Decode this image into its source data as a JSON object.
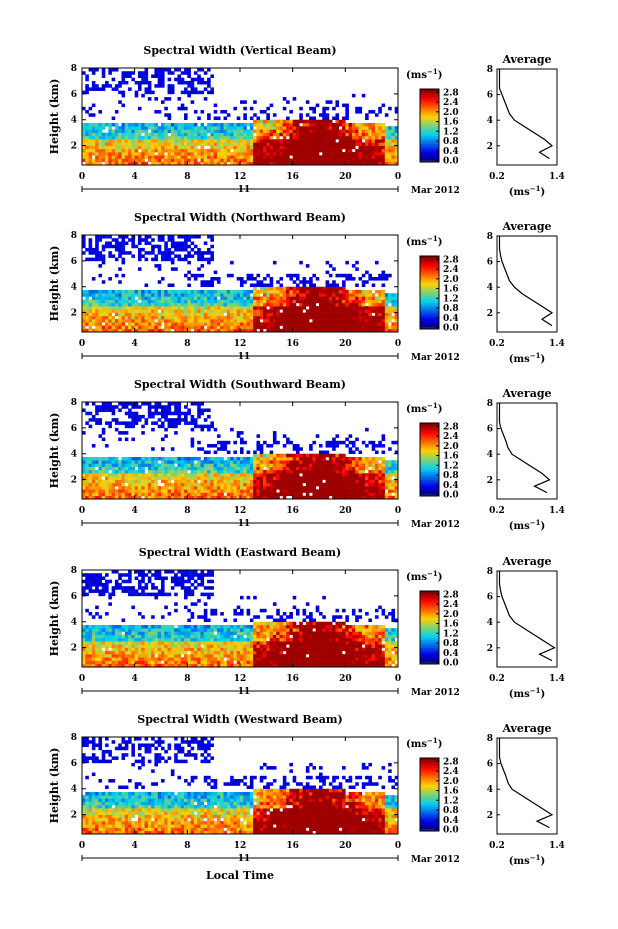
{
  "figure": {
    "xlabel": "Local Time",
    "date_left": "11",
    "date_right": "Mar 2012",
    "ylabel": "Height (km)",
    "cbar_unit": "(ms",
    "cbar_unit_exp": "−1",
    "avg_title": "Average",
    "avg_unit": "(ms",
    "avg_unit_exp": "−1"
  },
  "chart_data": [
    {
      "type": "heatmap",
      "title": "Spectral Width (Vertical Beam)",
      "xlabel": "",
      "ylabel": "Height (km)",
      "x_ticks": [
        "0",
        "4",
        "8",
        "12",
        "16",
        "20",
        "0"
      ],
      "y_ticks": [
        "2",
        "4",
        "6",
        "8"
      ],
      "xlim": [
        0,
        24
      ],
      "ylim": [
        0.5,
        8
      ],
      "colorbar": {
        "ticks": [
          "0.0",
          "0.4",
          "0.8",
          "1.2",
          "1.6",
          "2.0",
          "2.4",
          "2.8"
        ],
        "range": [
          0,
          3.0
        ]
      },
      "convective_peak": {
        "start_hour": 13,
        "end_hour": 23,
        "center_hour": 18,
        "max_width": 2.8
      },
      "average_profile": {
        "title": "Average",
        "xlim": [
          0.2,
          1.4
        ],
        "ylim": [
          0.5,
          8
        ],
        "x_ticks": [
          "0.2",
          "1.4"
        ],
        "y_ticks": [
          "2",
          "4",
          "6",
          "8"
        ],
        "height_km": [
          1.0,
          1.5,
          2.0,
          2.5,
          3.0,
          3.5,
          4.0,
          4.5,
          5.0,
          5.5,
          6.0,
          6.5,
          7.0,
          7.5,
          8.0
        ],
        "width_ms": [
          1.25,
          1.05,
          1.3,
          1.15,
          0.95,
          0.75,
          0.55,
          0.45,
          0.4,
          0.35,
          0.3,
          0.25,
          0.25,
          0.25,
          0.25
        ]
      }
    },
    {
      "type": "heatmap",
      "title": "Spectral Width (Northward Beam)",
      "xlabel": "",
      "ylabel": "Height (km)",
      "x_ticks": [
        "0",
        "4",
        "8",
        "12",
        "16",
        "20",
        "0"
      ],
      "y_ticks": [
        "2",
        "4",
        "6",
        "8"
      ],
      "xlim": [
        0,
        24
      ],
      "ylim": [
        0.5,
        8
      ],
      "colorbar": {
        "ticks": [
          "0.0",
          "0.4",
          "0.8",
          "1.2",
          "1.6",
          "2.0",
          "2.4",
          "2.8"
        ],
        "range": [
          0,
          3.0
        ]
      },
      "convective_peak": {
        "start_hour": 13,
        "end_hour": 23,
        "center_hour": 18,
        "max_width": 2.8
      },
      "average_profile": {
        "title": "Average",
        "xlim": [
          0.2,
          1.4
        ],
        "ylim": [
          0.5,
          8
        ],
        "x_ticks": [
          "0.2",
          "1.4"
        ],
        "y_ticks": [
          "2",
          "4",
          "6",
          "8"
        ],
        "height_km": [
          1.0,
          1.5,
          2.0,
          2.5,
          3.0,
          3.5,
          4.0,
          4.5,
          5.0,
          5.5,
          6.0,
          6.5,
          7.0,
          7.5,
          8.0
        ],
        "width_ms": [
          1.3,
          1.1,
          1.3,
          1.1,
          0.9,
          0.7,
          0.55,
          0.45,
          0.4,
          0.35,
          0.3,
          0.27,
          0.25,
          0.25,
          0.25
        ]
      }
    },
    {
      "type": "heatmap",
      "title": "Spectral Width (Southward Beam)",
      "xlabel": "",
      "ylabel": "Height (km)",
      "x_ticks": [
        "0",
        "4",
        "8",
        "12",
        "16",
        "20",
        "0"
      ],
      "y_ticks": [
        "2",
        "4",
        "6",
        "8"
      ],
      "xlim": [
        0,
        24
      ],
      "ylim": [
        0.5,
        8
      ],
      "colorbar": {
        "ticks": [
          "0.0",
          "0.4",
          "0.8",
          "1.2",
          "1.6",
          "2.0",
          "2.4",
          "2.8"
        ],
        "range": [
          0,
          3.0
        ]
      },
      "convective_peak": {
        "start_hour": 13,
        "end_hour": 23,
        "center_hour": 18,
        "max_width": 2.8
      },
      "average_profile": {
        "title": "Average",
        "xlim": [
          0.2,
          1.4
        ],
        "ylim": [
          0.5,
          8
        ],
        "x_ticks": [
          "0.2",
          "1.4"
        ],
        "y_ticks": [
          "2",
          "4",
          "6",
          "8"
        ],
        "height_km": [
          1.0,
          1.5,
          2.0,
          2.5,
          3.0,
          3.5,
          4.0,
          4.5,
          5.0,
          5.5,
          6.0,
          6.5,
          7.0,
          7.5,
          8.0
        ],
        "width_ms": [
          1.2,
          0.95,
          1.25,
          1.1,
          0.9,
          0.7,
          0.5,
          0.42,
          0.38,
          0.33,
          0.28,
          0.25,
          0.25,
          0.25,
          0.25
        ]
      }
    },
    {
      "type": "heatmap",
      "title": "Spectral Width (Eastward Beam)",
      "xlabel": "",
      "ylabel": "Height (km)",
      "x_ticks": [
        "0",
        "4",
        "8",
        "12",
        "16",
        "20",
        "0"
      ],
      "y_ticks": [
        "2",
        "4",
        "6",
        "8"
      ],
      "xlim": [
        0,
        24
      ],
      "ylim": [
        0.5,
        8
      ],
      "colorbar": {
        "ticks": [
          "0.0",
          "0.4",
          "0.8",
          "1.2",
          "1.6",
          "2.0",
          "2.4",
          "2.8"
        ],
        "range": [
          0,
          3.0
        ]
      },
      "convective_peak": {
        "start_hour": 13,
        "end_hour": 23,
        "center_hour": 18,
        "max_width": 2.8
      },
      "average_profile": {
        "title": "Average",
        "xlim": [
          0.2,
          1.4
        ],
        "ylim": [
          0.5,
          8
        ],
        "x_ticks": [
          "0.2",
          "1.4"
        ],
        "y_ticks": [
          "2",
          "4",
          "6",
          "8"
        ],
        "height_km": [
          1.0,
          1.5,
          2.0,
          2.5,
          3.0,
          3.5,
          4.0,
          4.5,
          5.0,
          5.5,
          6.0,
          6.5,
          7.0,
          7.5,
          8.0
        ],
        "width_ms": [
          1.3,
          1.05,
          1.35,
          1.15,
          0.95,
          0.75,
          0.55,
          0.45,
          0.4,
          0.35,
          0.3,
          0.27,
          0.25,
          0.25,
          0.25
        ]
      }
    },
    {
      "type": "heatmap",
      "title": "Spectral Width (Westward Beam)",
      "xlabel": "Local Time",
      "ylabel": "Height (km)",
      "x_ticks": [
        "0",
        "4",
        "8",
        "12",
        "16",
        "20",
        "0"
      ],
      "y_ticks": [
        "2",
        "4",
        "6",
        "8"
      ],
      "xlim": [
        0,
        24
      ],
      "ylim": [
        0.5,
        8
      ],
      "colorbar": {
        "ticks": [
          "0.0",
          "0.4",
          "0.8",
          "1.2",
          "1.6",
          "2.0",
          "2.4",
          "2.8"
        ],
        "range": [
          0,
          3.0
        ]
      },
      "convective_peak": {
        "start_hour": 13,
        "end_hour": 23,
        "center_hour": 18,
        "max_width": 2.8
      },
      "average_profile": {
        "title": "Average",
        "xlim": [
          0.2,
          1.4
        ],
        "ylim": [
          0.5,
          8
        ],
        "x_ticks": [
          "0.2",
          "1.4"
        ],
        "y_ticks": [
          "2",
          "4",
          "6",
          "8"
        ],
        "height_km": [
          1.0,
          1.5,
          2.0,
          2.5,
          3.0,
          3.5,
          4.0,
          4.5,
          5.0,
          5.5,
          6.0,
          6.5,
          7.0,
          7.5,
          8.0
        ],
        "width_ms": [
          1.25,
          1.0,
          1.3,
          1.1,
          0.9,
          0.7,
          0.5,
          0.42,
          0.38,
          0.33,
          0.28,
          0.25,
          0.25,
          0.25,
          0.25
        ]
      }
    }
  ]
}
